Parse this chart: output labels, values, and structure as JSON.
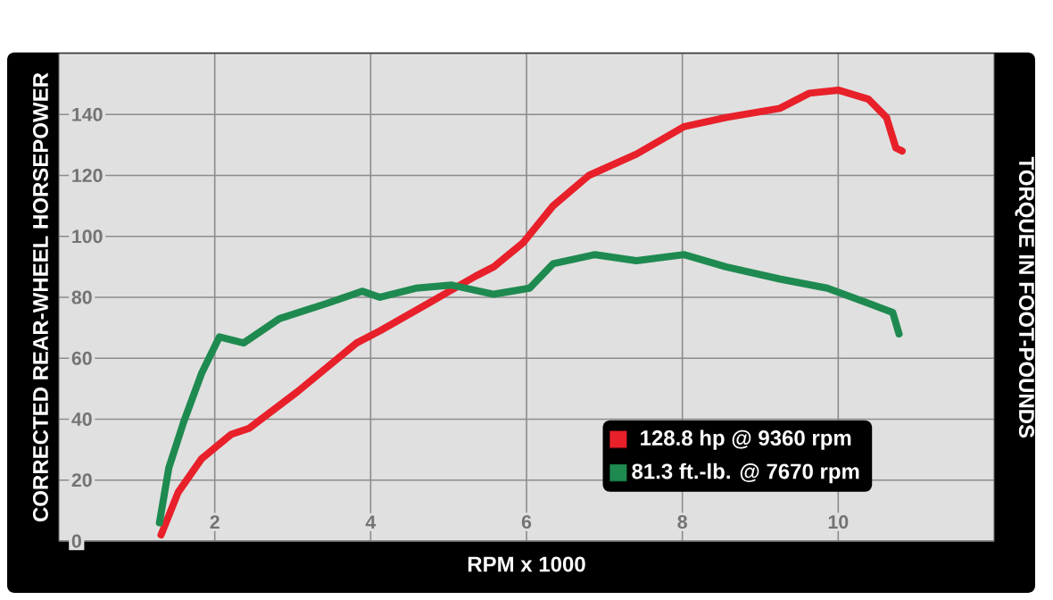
{
  "chart_data": {
    "type": "line",
    "xlabel": "RPM x 1000",
    "ylabel": "CORRECTED REAR-WHEEL HORSEPOWER",
    "y2label": "TORQUE IN FOOT-POUNDS",
    "xlim": [
      0,
      12
    ],
    "xticks": [
      2,
      4,
      6,
      8,
      10
    ],
    "ylim": [
      0,
      160
    ],
    "yticks": [
      0,
      20,
      40,
      60,
      80,
      100,
      120,
      140
    ],
    "grid": true,
    "legend": "bottom right",
    "marker": "none",
    "line_style": "solid",
    "series": [
      {
        "name": "128.8 hp @ 9360 rpm",
        "color": "#e8202a",
        "x": [
          1.31,
          1.53,
          1.83,
          2.21,
          2.44,
          3.06,
          3.82,
          4.12,
          4.74,
          5.35,
          5.58,
          5.96,
          6.34,
          6.8,
          7.41,
          8.02,
          8.56,
          9.25,
          9.63,
          10.0,
          10.39,
          10.62,
          10.74,
          10.82
        ],
        "values": [
          2,
          16,
          27,
          35,
          37,
          49,
          65,
          69,
          78,
          87,
          90,
          98,
          110,
          120,
          127,
          136,
          139,
          142,
          147,
          148,
          145,
          139,
          129,
          128
        ]
      },
      {
        "name": "81.3 ft.-lb. @ 7670 rpm",
        "color": "#1e8a50",
        "x": [
          1.29,
          1.41,
          1.6,
          1.83,
          2.06,
          2.37,
          2.83,
          3.44,
          3.89,
          4.12,
          4.58,
          5.04,
          5.58,
          6.04,
          6.34,
          6.88,
          7.41,
          8.02,
          8.56,
          9.25,
          9.86,
          10.39,
          10.7,
          10.78
        ],
        "values": [
          6,
          24,
          39,
          55,
          67,
          65,
          73,
          78,
          82,
          80,
          83,
          84,
          81,
          83,
          91,
          94,
          92,
          94,
          90,
          86,
          83,
          78,
          75,
          68
        ]
      }
    ]
  }
}
